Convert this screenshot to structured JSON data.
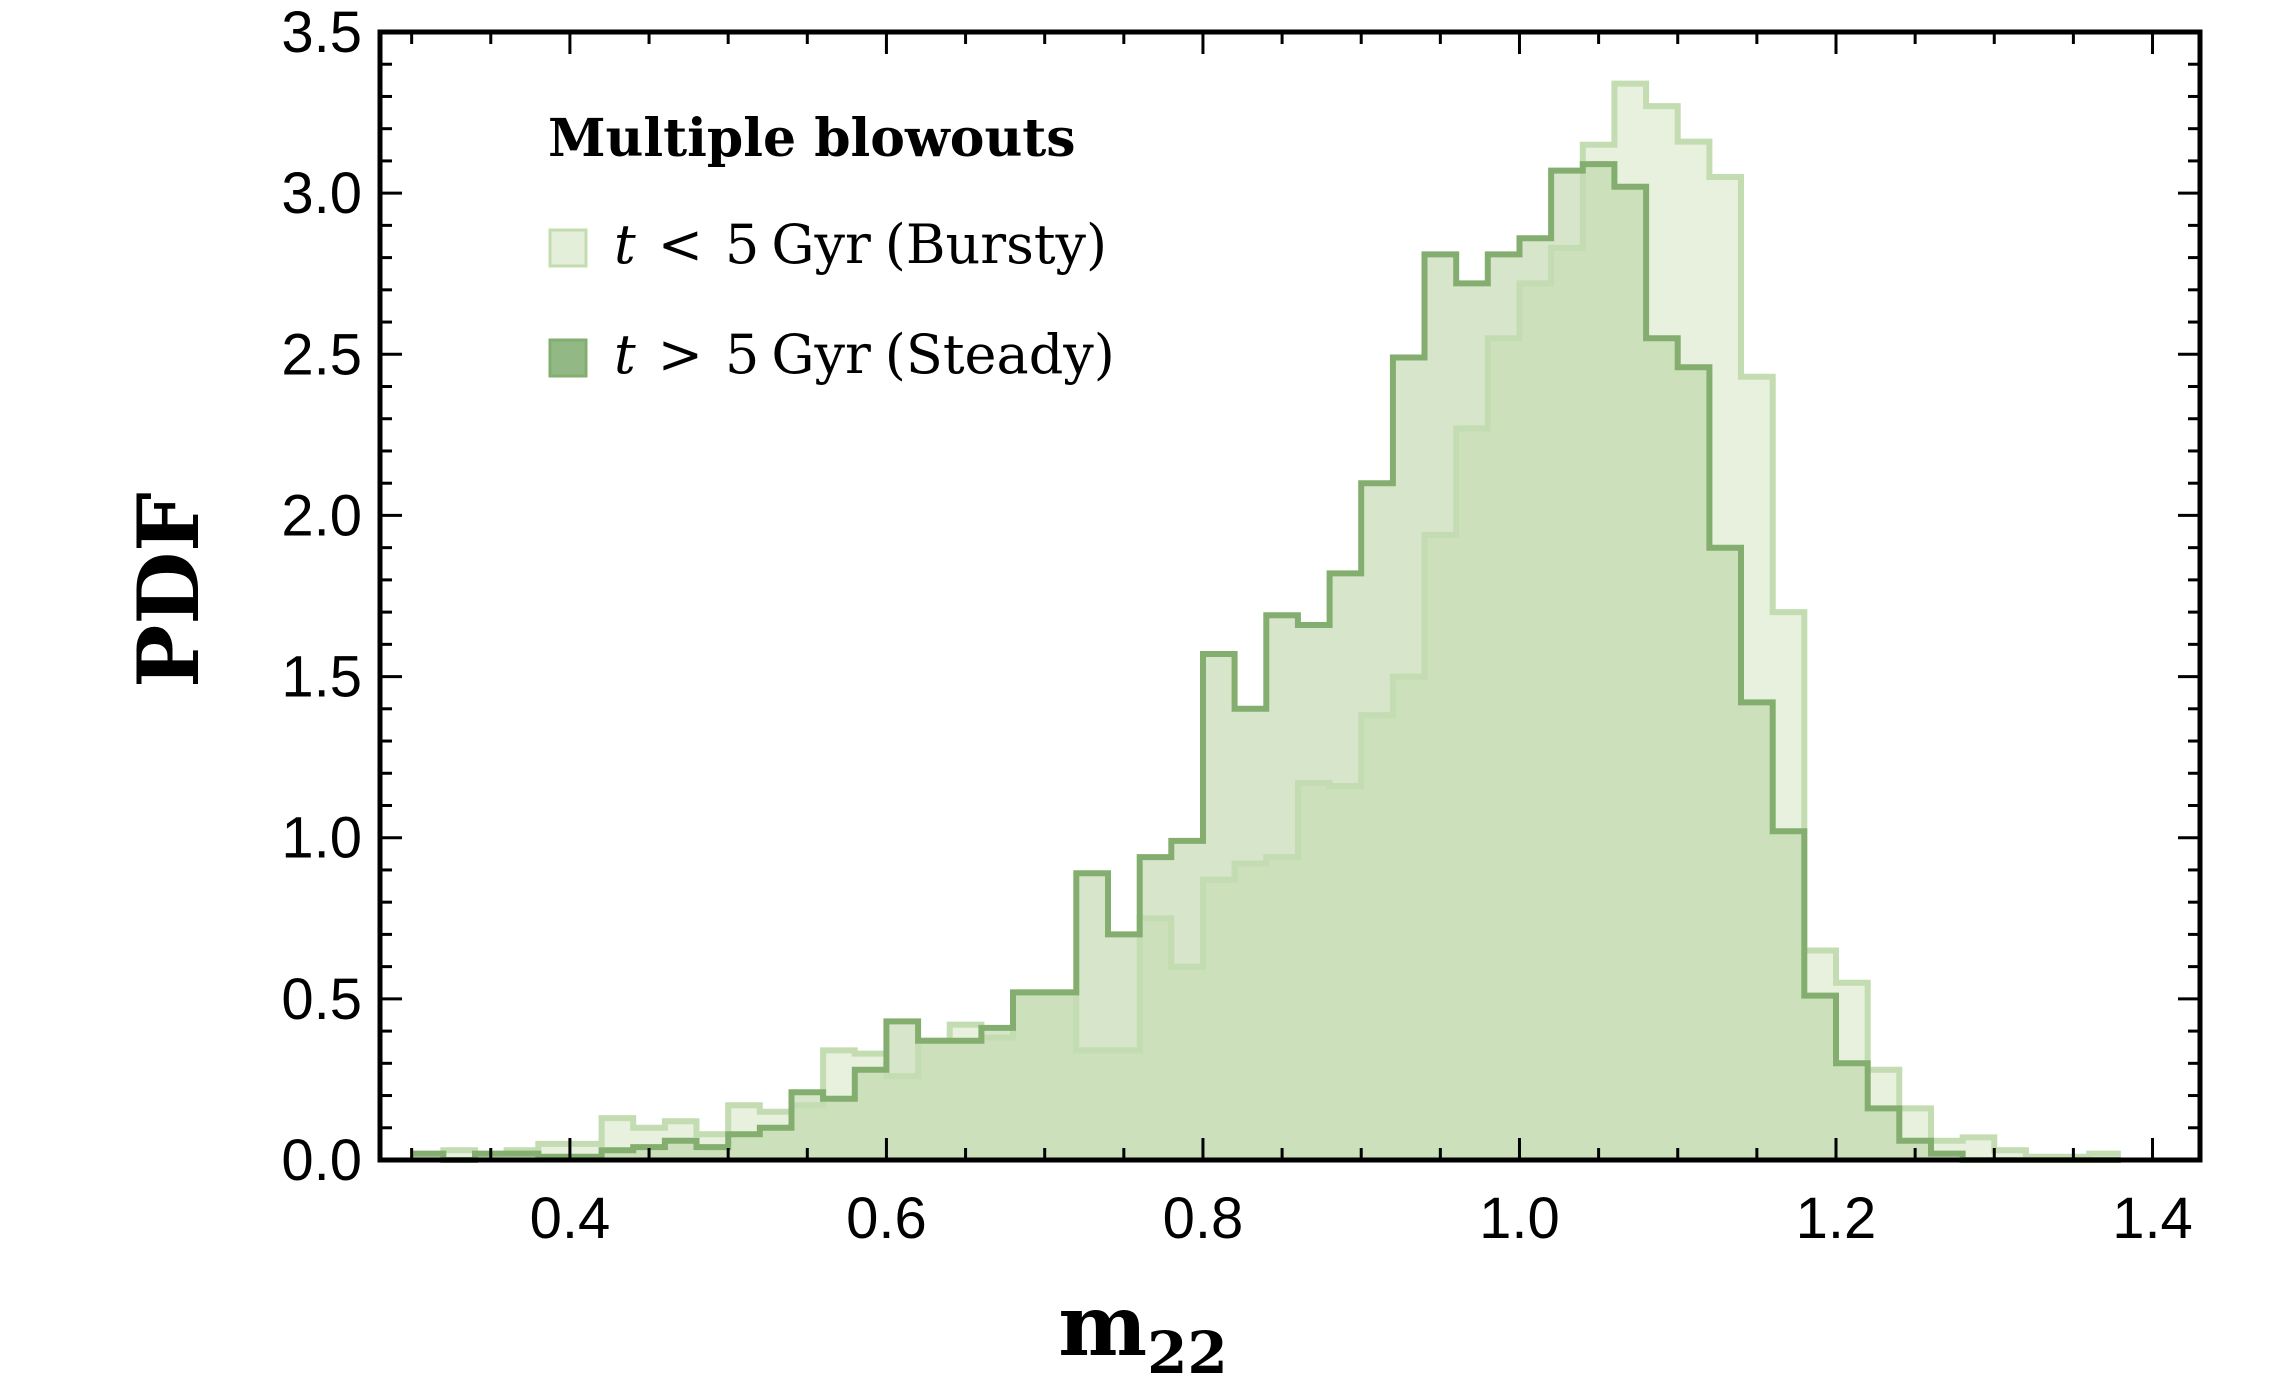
{
  "chart_data": {
    "type": "histogram",
    "xlabel": "m",
    "xlabel_subscript": "22",
    "ylabel": "PDF",
    "xlim": [
      0.28,
      1.43
    ],
    "ylim": [
      0.0,
      3.5
    ],
    "x_ticks": [
      "0.4",
      "0.6",
      "0.8",
      "1.0",
      "1.2",
      "1.4"
    ],
    "y_ticks": [
      "0.0",
      "0.5",
      "1.0",
      "1.5",
      "2.0",
      "2.5",
      "3.0",
      "3.5"
    ],
    "bin_start": 0.3,
    "bin_width": 0.02,
    "legend": {
      "title": "Multiple blowouts",
      "position": "top-left",
      "entries": [
        {
          "var": "t",
          "rel": "<",
          "num": "5",
          "unit": "Gyr",
          "label": "(Bursty)"
        },
        {
          "var": "t",
          "rel": ">",
          "num": "5",
          "unit": "Gyr",
          "label": "(Steady)"
        }
      ]
    },
    "series": [
      {
        "name": "t < 5 Gyr (Bursty)",
        "fill": "#e3efd8",
        "fill_opacity": 0.85,
        "stroke": "#c3dcb1",
        "values": [
          0.01,
          0.03,
          0.01,
          0.03,
          0.05,
          0.05,
          0.13,
          0.1,
          0.12,
          0.08,
          0.17,
          0.15,
          0.17,
          0.34,
          0.33,
          0.26,
          0.37,
          0.42,
          0.38,
          0.52,
          0.52,
          0.34,
          0.34,
          0.75,
          0.6,
          0.87,
          0.92,
          0.94,
          1.17,
          1.16,
          1.38,
          1.5,
          1.94,
          2.27,
          2.55,
          2.72,
          2.83,
          3.15,
          3.34,
          3.27,
          3.16,
          3.05,
          2.43,
          1.7,
          0.65,
          0.55,
          0.28,
          0.16,
          0.06,
          0.07,
          0.03,
          0.01,
          0.01,
          0.02
        ]
      },
      {
        "name": "t > 5 Gyr (Steady)",
        "fill": "#b6d2a1",
        "fill_opacity": 0.55,
        "stroke": "#84ae6f",
        "values": [
          0.02,
          0.0,
          0.02,
          0.02,
          0.01,
          0.01,
          0.03,
          0.04,
          0.06,
          0.04,
          0.08,
          0.1,
          0.21,
          0.19,
          0.28,
          0.43,
          0.37,
          0.37,
          0.41,
          0.52,
          0.52,
          0.89,
          0.7,
          0.94,
          0.99,
          1.57,
          1.4,
          1.69,
          1.66,
          1.82,
          2.1,
          2.49,
          2.81,
          2.72,
          2.81,
          2.86,
          3.07,
          3.09,
          3.02,
          2.55,
          2.46,
          1.9,
          1.42,
          1.02,
          0.51,
          0.3,
          0.16,
          0.06,
          0.02,
          0.0,
          0.0,
          0.0,
          0.0,
          0.0
        ]
      }
    ]
  }
}
